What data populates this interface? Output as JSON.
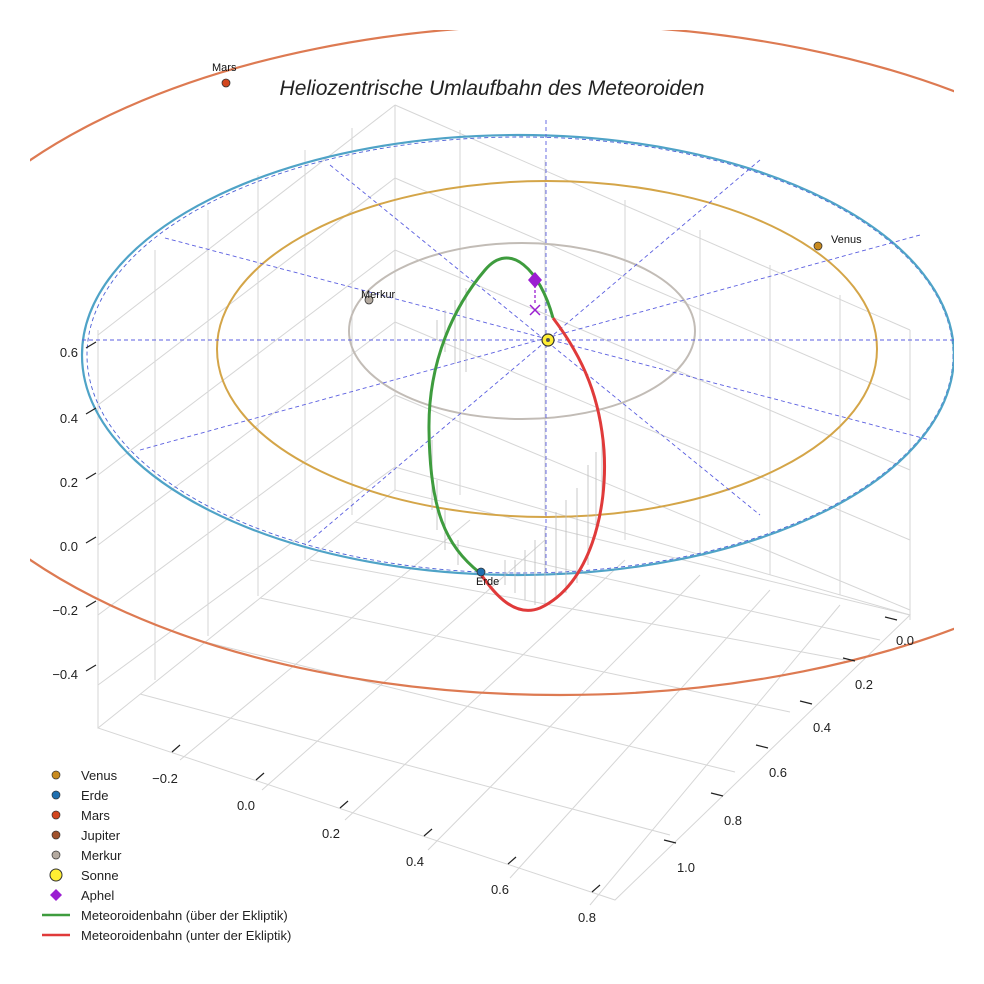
{
  "chart_data": {
    "type": "scatter",
    "projection": "3d",
    "title": "Heliozentrische Umlaufbahn des Meteoroiden",
    "xlabel": "",
    "ylabel": "",
    "zlabel": "",
    "axis_x_ticks": [
      "−0.2",
      "0.0",
      "0.2",
      "0.4",
      "0.6",
      "0.8"
    ],
    "axis_y_ticks": [
      "0.0",
      "0.2",
      "0.4",
      "0.6",
      "0.8",
      "1.0"
    ],
    "axis_z_ticks": [
      "−0.4",
      "−0.2",
      "0.0",
      "0.2",
      "0.4",
      "0.6"
    ],
    "grid": true,
    "legend_position": "bottom-left",
    "orbits": [
      {
        "name": "Merkur",
        "radius_au": 0.39,
        "color": "#c2bcb6"
      },
      {
        "name": "Venus",
        "radius_au": 0.72,
        "color": "#d4a548"
      },
      {
        "name": "Erde",
        "radius_au": 1.0,
        "color": "#4fa3c7"
      },
      {
        "name": "Mars",
        "radius_au": 1.52,
        "color": "#dd7a52"
      }
    ],
    "planets": [
      {
        "label": "Mars",
        "color": "#d2461e"
      },
      {
        "label": "Venus",
        "color": "#c88a1e"
      },
      {
        "label": "Merkur",
        "color": "#b4aaa0"
      },
      {
        "label": "Erde",
        "color": "#1f6fb0"
      }
    ],
    "meteoroid_orbit": {
      "above_color": "#3e9c3e",
      "below_color": "#e03a3a",
      "aphelion_color": "#9b1fd1"
    },
    "sun_color": "#ffee33",
    "legend": [
      {
        "label": "Venus",
        "marker": "circle",
        "color": "#c88a1e"
      },
      {
        "label": "Erde",
        "marker": "circle",
        "color": "#1f6fb0"
      },
      {
        "label": "Mars",
        "marker": "circle",
        "color": "#d2461e"
      },
      {
        "label": "Jupiter",
        "marker": "circle",
        "color": "#a0522d"
      },
      {
        "label": "Merkur",
        "marker": "circle",
        "color": "#b4aaa0"
      },
      {
        "label": "Sonne",
        "marker": "sun",
        "color": "#ffee33"
      },
      {
        "label": "Aphel",
        "marker": "diamond",
        "color": "#9b1fd1"
      },
      {
        "label": "Meteoroidenbahn (über der Ekliptik)",
        "marker": "line",
        "color": "#3e9c3e"
      },
      {
        "label": "Meteoroidenbahn (unter der Ekliptik)",
        "marker": "line",
        "color": "#e03a3a"
      }
    ]
  }
}
